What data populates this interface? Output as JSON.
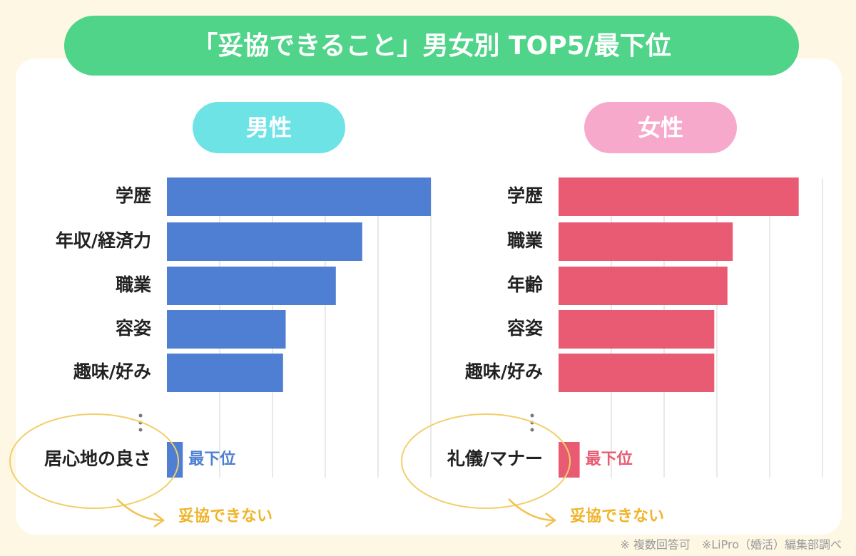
{
  "title": "「妥協できること」男女別 TOP5/最下位",
  "footnote": "※ 複数回答可　※LiPro（婚活）編集部調べ",
  "chart_data": [
    {
      "type": "bar",
      "title": "男性",
      "title_color": "#6ee3e6",
      "color": "#4f7fd3",
      "categories": [
        "学歴",
        "年収/経済力",
        "職業",
        "容姿",
        "趣味/好み",
        "居心地の良さ"
      ],
      "values": [
        5.0,
        3.7,
        3.2,
        2.25,
        2.2,
        0.3
      ],
      "xlim": [
        0,
        5
      ],
      "grid": true,
      "rank_label": "最下位",
      "note": "妥協できない"
    },
    {
      "type": "bar",
      "title": "女性",
      "title_color": "#f7a9cc",
      "color": "#e85b72",
      "categories": [
        "学歴",
        "職業",
        "年齢",
        "容姿",
        "趣味/好み",
        "礼儀/マナー"
      ],
      "values": [
        4.55,
        3.3,
        3.2,
        2.95,
        2.95,
        0.4
      ],
      "xlim": [
        0,
        5
      ],
      "grid": true,
      "rank_label": "最下位",
      "note": "妥協できない"
    }
  ]
}
